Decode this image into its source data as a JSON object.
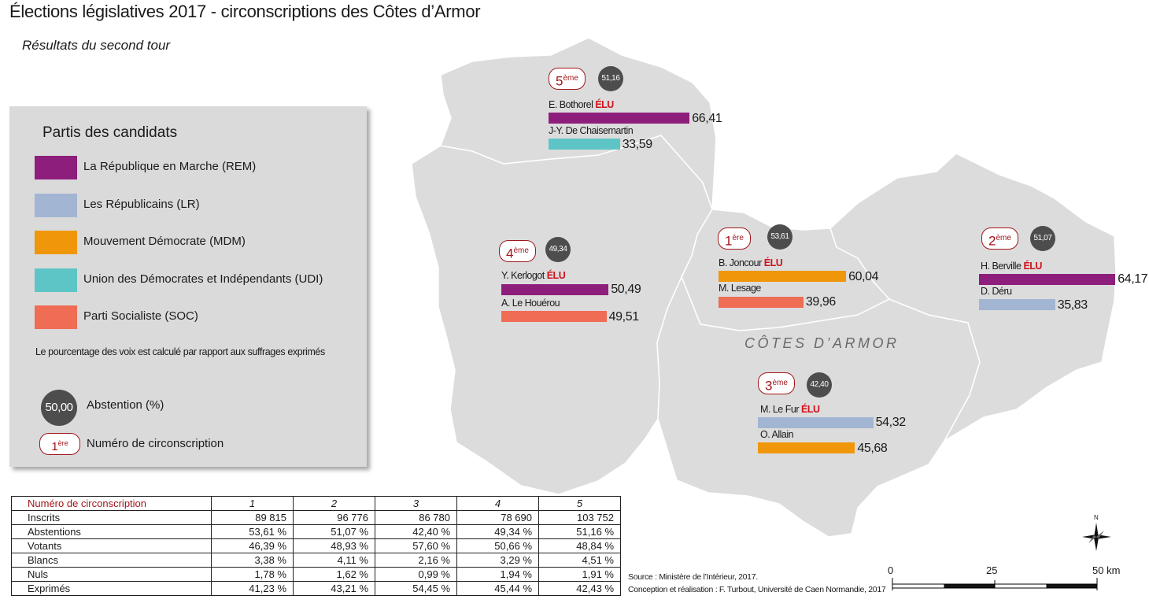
{
  "title": "Élections législatives 2017 - circonscriptions des Côtes d’Armor",
  "subtitle": "Résultats du second tour",
  "department_label": "CÔTES D’ARMOR",
  "colors": {
    "REM": "#8e1e7c",
    "LR": "#a2b6d3",
    "MDM": "#f0960a",
    "UDI": "#5ec5c7",
    "SOC": "#ef6c55",
    "map_fill": "#dcdcdc",
    "elu": "#d0121b",
    "badge": "#a0161c"
  },
  "legend": {
    "title": "Partis des candidats",
    "parties": [
      {
        "code": "REM",
        "label": "La République en Marche (REM)"
      },
      {
        "code": "LR",
        "label": "Les Républicains (LR)"
      },
      {
        "code": "MDM",
        "label": "Mouvement Démocrate (MDM)"
      },
      {
        "code": "UDI",
        "label": "Union des Démocrates et Indépendants (UDI)"
      },
      {
        "code": "SOC",
        "label": "Parti Socialiste (SOC)"
      }
    ],
    "note": "Le pourcentage des voix est calculé par rapport aux suffrages exprimés",
    "abstention_example": "50,00",
    "abstention_label": "Abstention (%)",
    "circ_example_num": "1",
    "circ_example_sup": "ère",
    "circ_label": "Numéro de circonscription"
  },
  "elu_label": "ÉLU",
  "districts": [
    {
      "num": "5",
      "sup": "ème",
      "abstention": "51,16",
      "candidates": [
        {
          "name": "E. Bothorel",
          "party": "REM",
          "value": 66.41,
          "value_text": "66,41",
          "elected": true
        },
        {
          "name": "J-Y. De Chaisemartin",
          "party": "UDI",
          "value": 33.59,
          "value_text": "33,59",
          "elected": false
        }
      ]
    },
    {
      "num": "4",
      "sup": "ème",
      "abstention": "49,34",
      "candidates": [
        {
          "name": "Y. Kerlogot",
          "party": "REM",
          "value": 50.49,
          "value_text": "50,49",
          "elected": true
        },
        {
          "name": "A. Le Houérou",
          "party": "SOC",
          "value": 49.51,
          "value_text": "49,51",
          "elected": false
        }
      ]
    },
    {
      "num": "1",
      "sup": "ère",
      "abstention": "53,61",
      "candidates": [
        {
          "name": "B. Joncour",
          "party": "MDM",
          "value": 60.04,
          "value_text": "60,04",
          "elected": true
        },
        {
          "name": "M. Lesage",
          "party": "SOC",
          "value": 39.96,
          "value_text": "39,96",
          "elected": false
        }
      ]
    },
    {
      "num": "2",
      "sup": "ème",
      "abstention": "51,07",
      "candidates": [
        {
          "name": "H. Berville",
          "party": "REM",
          "value": 64.17,
          "value_text": "64,17",
          "elected": true
        },
        {
          "name": "D. Déru",
          "party": "LR",
          "value": 35.83,
          "value_text": "35,83",
          "elected": false
        }
      ]
    },
    {
      "num": "3",
      "sup": "ème",
      "abstention": "42,40",
      "candidates": [
        {
          "name": "M. Le Fur",
          "party": "LR",
          "value": 54.32,
          "value_text": "54,32",
          "elected": true
        },
        {
          "name": "O. Allain",
          "party": "MDM",
          "value": 45.68,
          "value_text": "45,68",
          "elected": false
        }
      ]
    }
  ],
  "table": {
    "header": [
      "Numéro de circonscription",
      "1",
      "2",
      "3",
      "4",
      "5"
    ],
    "rows": [
      [
        "Inscrits",
        "89 815",
        "96 776",
        "86 780",
        "78 690",
        "103 752"
      ],
      [
        "Abstentions",
        "53,61 %",
        "51,07 %",
        "42,40 %",
        "49,34 %",
        "51,16 %"
      ],
      [
        "Votants",
        "46,39 %",
        "48,93 %",
        "57,60 %",
        "50,66 %",
        "48,84 %"
      ],
      [
        "Blancs",
        "3,38 %",
        "4,11 %",
        "2,16 %",
        "3,29 %",
        "4,51 %"
      ],
      [
        "Nuls",
        "1,78 %",
        "1,62 %",
        "0,99 %",
        "1,94 %",
        "1,91 %"
      ],
      [
        "Exprimés",
        "41,23 %",
        "43,21 %",
        "54,45 %",
        "45,44 %",
        "42,43 %"
      ]
    ]
  },
  "source": {
    "line1": "Source : Ministère de l’Intérieur, 2017.",
    "line2": "Conception et réalisation : F. Turbout, Université de Caen Normandie, 2017"
  },
  "scale": {
    "labels": [
      "0",
      "25",
      "50 km"
    ]
  },
  "north_label": "N"
}
